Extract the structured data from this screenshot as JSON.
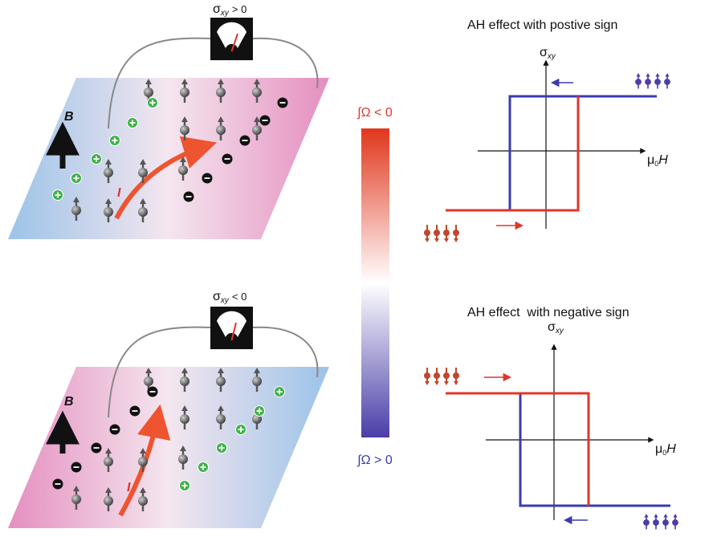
{
  "top_panel": {
    "label_symbol": "σ",
    "label_subscript": "xy",
    "label_relation": "> 0",
    "field_label": "B",
    "current_label": "I"
  },
  "bottom_panel": {
    "label_symbol": "σ",
    "label_subscript": "xy",
    "label_relation": "< 0",
    "field_label": "B",
    "current_label": "I"
  },
  "color_bar": {
    "top_label": "∫Ω < 0",
    "bottom_label": "∫Ω > 0"
  },
  "plot_positive": {
    "title": "AH effect with postive sign",
    "y_label_symbol": "σ",
    "y_label_subscript": "xy",
    "x_label_symbol": "μ",
    "x_label_subscript": "0",
    "x_label_variable": "H"
  },
  "plot_negative": {
    "title": "AH effect  with negative sign",
    "y_label_symbol": "σ",
    "y_label_subscript": "xy",
    "x_label_symbol": "μ",
    "x_label_subscript": "0",
    "x_label_variable": "H"
  }
}
